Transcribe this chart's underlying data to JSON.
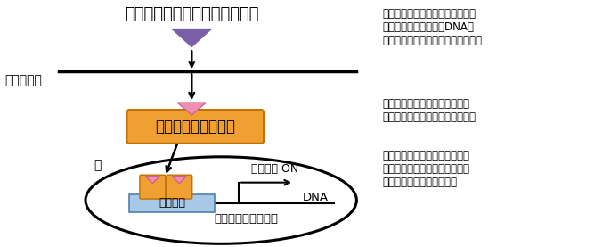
{
  "fig_width": 6.86,
  "fig_height": 2.77,
  "dpi": 100,
  "bg_color": "#ffffff",
  "title_text": "男性ホルモン（アンドロゲン）",
  "label_cancer": "がん細胞内",
  "label_nucleus": "核",
  "label_receptor_box": "アンドロゲン受容体",
  "label_binding": "結合配列",
  "label_switch": "スイッチ ON",
  "label_dna": "DNA",
  "label_gene_control": "特定の遣伝子の制御",
  "right_text1": "男性ホルモンであるアンドロゲン\nの受容体は細胞の核でDNAに\n結合し遣伝子スイッチとして働く。",
  "right_text2": "男性ホルモンの指令により特定\nの遣伝子群を核内で活性化する。",
  "right_text3": "がんに治療が効かなくなる際に\nアンドロゲン受容体および標的\n遣伝子の働きが鍵を握る。",
  "orange_color": "#f0a030",
  "pink_color": "#f090b0",
  "purple_color": "#7b5ea7",
  "blue_box_color": "#a8c8e8",
  "orange_edge": "#c07000",
  "blue_edge": "#5080b0"
}
